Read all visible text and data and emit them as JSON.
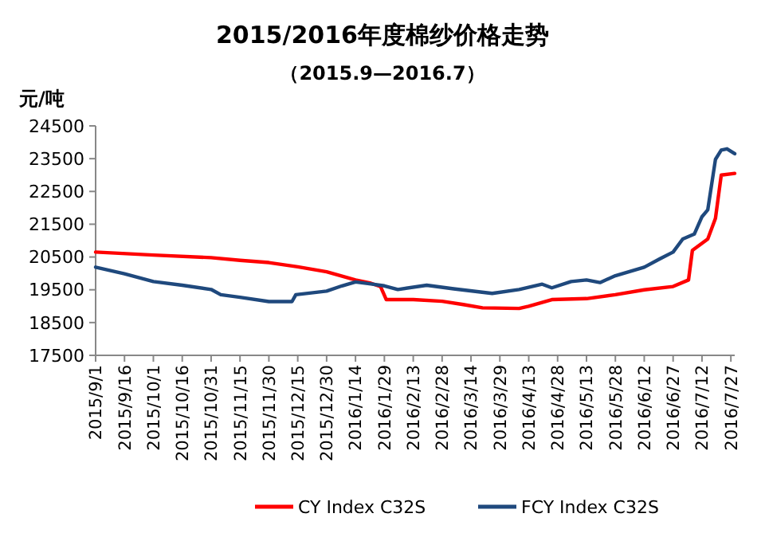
{
  "chart_data": {
    "type": "line",
    "title": "2015/2016年度棉纱价格走势",
    "subtitle": "（2015.9—2016.7）",
    "ylabel": "元/吨",
    "xlim": [
      "2015-09-01",
      "2016-07-29"
    ],
    "xticks": [
      {
        "value": "2015-09-01",
        "label": "2015/9/1"
      },
      {
        "value": "2015-09-16",
        "label": "2015/9/16"
      },
      {
        "value": "2015-10-01",
        "label": "2015/10/1"
      },
      {
        "value": "2015-10-16",
        "label": "2015/10/16"
      },
      {
        "value": "2015-10-31",
        "label": "2015/10/31"
      },
      {
        "value": "2015-11-15",
        "label": "2015/11/15"
      },
      {
        "value": "2015-11-30",
        "label": "2015/11/30"
      },
      {
        "value": "2015-12-15",
        "label": "2015/12/15"
      },
      {
        "value": "2015-12-30",
        "label": "2015/12/30"
      },
      {
        "value": "2016-01-14",
        "label": "2016/1/14"
      },
      {
        "value": "2016-01-29",
        "label": "2016/1/29"
      },
      {
        "value": "2016-02-13",
        "label": "2016/2/13"
      },
      {
        "value": "2016-02-28",
        "label": "2016/2/28"
      },
      {
        "value": "2016-03-14",
        "label": "2016/3/14"
      },
      {
        "value": "2016-03-29",
        "label": "2016/3/29"
      },
      {
        "value": "2016-04-13",
        "label": "2016/4/13"
      },
      {
        "value": "2016-04-28",
        "label": "2016/4/28"
      },
      {
        "value": "2016-05-13",
        "label": "2016/5/13"
      },
      {
        "value": "2016-05-28",
        "label": "2016/5/28"
      },
      {
        "value": "2016-06-12",
        "label": "2016/6/12"
      },
      {
        "value": "2016-06-27",
        "label": "2016/6/27"
      },
      {
        "value": "2016-07-12",
        "label": "2016/7/12"
      },
      {
        "value": "2016-07-27",
        "label": "2016/7/27"
      }
    ],
    "ylim": [
      17500,
      24500
    ],
    "yticks": [
      17500,
      18500,
      19500,
      20500,
      21500,
      22500,
      23500,
      24500
    ],
    "grid": false,
    "legend": "bottom",
    "marker": "none",
    "line_style": "solid",
    "series": [
      {
        "name": "CY Index C32S",
        "color": "#ff0000",
        "x": [
          "2015-09-01",
          "2015-10-01",
          "2015-10-31",
          "2015-11-15",
          "2015-11-30",
          "2015-12-15",
          "2015-12-30",
          "2016-01-14",
          "2016-01-22",
          "2016-01-27",
          "2016-01-30",
          "2016-02-13",
          "2016-02-28",
          "2016-03-10",
          "2016-03-20",
          "2016-04-08",
          "2016-04-13",
          "2016-04-25",
          "2016-05-13",
          "2016-05-28",
          "2016-06-12",
          "2016-06-27",
          "2016-07-05",
          "2016-07-07",
          "2016-07-15",
          "2016-07-19",
          "2016-07-22",
          "2016-07-29"
        ],
        "values": [
          20650,
          20560,
          20480,
          20400,
          20330,
          20200,
          20050,
          19800,
          19700,
          19600,
          19200,
          19200,
          19150,
          19050,
          18950,
          18930,
          19000,
          19200,
          19230,
          19350,
          19500,
          19600,
          19800,
          20700,
          21050,
          21680,
          23000,
          23050
        ]
      },
      {
        "name": "FCY Index C32S",
        "color": "#1f497d",
        "x": [
          "2015-09-01",
          "2015-09-16",
          "2015-10-01",
          "2015-10-16",
          "2015-10-31",
          "2015-11-05",
          "2015-11-15",
          "2015-11-30",
          "2015-12-12",
          "2015-12-14",
          "2015-12-30",
          "2016-01-07",
          "2016-01-14",
          "2016-01-22",
          "2016-01-29",
          "2016-02-05",
          "2016-02-20",
          "2016-03-05",
          "2016-03-25",
          "2016-04-08",
          "2016-04-20",
          "2016-04-25",
          "2016-05-05",
          "2016-05-13",
          "2016-05-20",
          "2016-05-28",
          "2016-06-12",
          "2016-06-20",
          "2016-06-27",
          "2016-07-02",
          "2016-07-08",
          "2016-07-12",
          "2016-07-15",
          "2016-07-19",
          "2016-07-22",
          "2016-07-25",
          "2016-07-29"
        ],
        "values": [
          20190,
          19990,
          19750,
          19640,
          19510,
          19350,
          19270,
          19140,
          19140,
          19350,
          19460,
          19620,
          19740,
          19680,
          19620,
          19510,
          19640,
          19530,
          19390,
          19510,
          19670,
          19560,
          19750,
          19800,
          19720,
          19930,
          20190,
          20440,
          20650,
          21050,
          21200,
          21730,
          21940,
          23480,
          23760,
          23800,
          23650
        ]
      }
    ]
  }
}
